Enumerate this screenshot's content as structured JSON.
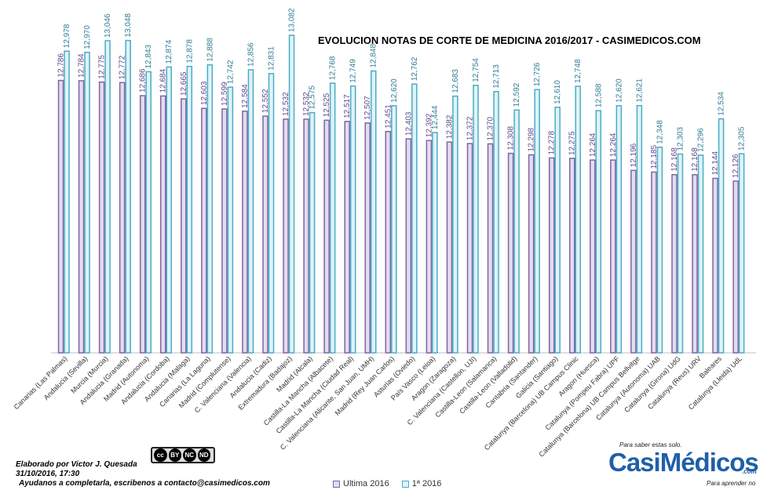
{
  "chart_data": {
    "type": "bar",
    "title": "EVOLUCION NOTAS DE CORTE DE MEDICINA 2016/2017    - CASIMEDICOS.COM",
    "xlabel": "",
    "ylabel": "",
    "ylim": [
      11.0,
      13.1
    ],
    "grid": false,
    "legend_position": "bottom",
    "categories": [
      "Canarias (Las Palmas)",
      "Andalucia (Sevilla)",
      "Murcia (Murcia)",
      "Andalucia (Granada)",
      "Madrid (Autonoma)",
      "Andalucia (Cordoba)",
      "Andalucia (Malaga)",
      "Canarias (La Laguna)",
      "Madrid (Complutense)",
      "C. Valenciana (Valencia)",
      "Andalucia (Cadiz)",
      "Extremadura (Badajoz)",
      "Madrid (Alcala)",
      "Castilla-La Mancha (Albacete)",
      "Castilla-La Mancha (Ciudad Real)",
      "C. Valenciana (Alicante, San Juan, UMH)",
      "Madrid (Rey Juan Carlos)",
      "Asturias (Oviedo)",
      "País Vasco (Leioa)",
      "Aragon (Zaragoza)",
      "C. Valenciana (Castellon, UJI)",
      "Castilla-Leon (Salamanca)",
      "Castilla-Leon (Valladolid)",
      "Cantabria (Santander)",
      "Galicia (Santiago)",
      "Catalunya (Barcelona) UB Campus Clinic",
      "Aragon (Huesca)",
      "Catalunya (Pompeu Fabra) UPF",
      "Catalunya (Barcelona) UB Campus Bellvitge",
      "Catalunya (Autonoma) UAB",
      "Catalunya (Girona) UdG",
      "Catalunya (Reus) URV",
      "Baleares",
      "Catalunya (Lleida) UdL"
    ],
    "series": [
      {
        "name": "Ultima 2016",
        "color": "#8064a2",
        "values": [
          12.786,
          12.784,
          12.775,
          12.772,
          12.686,
          12.684,
          12.665,
          12.603,
          12.599,
          12.584,
          12.552,
          12.532,
          12.532,
          12.525,
          12.517,
          12.507,
          12.451,
          12.403,
          12.392,
          12.382,
          12.372,
          12.37,
          12.308,
          12.298,
          12.278,
          12.275,
          12.264,
          12.264,
          12.196,
          12.185,
          12.168,
          12.168,
          12.144,
          12.126
        ],
        "labels": [
          "12,786",
          "12,784",
          "12,775",
          "12,772",
          "12,686",
          "12,684",
          "12,665",
          "12,603",
          "12,599",
          "12,584",
          "12,552",
          "12,532",
          "12,532",
          "12,525",
          "12,517",
          "12,507",
          "12,451",
          "12,403",
          "12,392",
          "12,382",
          "12,372",
          "12,370",
          "12,308",
          "12,298",
          "12,278",
          "12,275",
          "12,264",
          "12,264",
          "12,196",
          "12,185",
          "12,168",
          "12,168",
          "12,144",
          "12,126"
        ]
      },
      {
        "name": "1ª 2016",
        "color": "#4bacc6",
        "values": [
          12.978,
          12.97,
          13.046,
          13.048,
          12.843,
          12.874,
          12.878,
          12.888,
          12.742,
          12.856,
          12.831,
          13.082,
          12.575,
          12.768,
          12.749,
          12.848,
          12.62,
          12.762,
          12.444,
          12.683,
          12.754,
          12.713,
          12.592,
          12.726,
          12.61,
          12.748,
          12.588,
          12.62,
          12.621,
          12.348,
          12.303,
          12.296,
          12.534,
          12.305
        ],
        "labels": [
          "12,978",
          "12,970",
          "13,046",
          "13,048",
          "12,843",
          "12,874",
          "12,878",
          "12,888",
          "12,742",
          "12,856",
          "12,831",
          "13,082",
          "12,575",
          "12,768",
          "12,749",
          "12,848",
          "12,620",
          "12,762",
          "12,444",
          "12,683",
          "12,754",
          "12,713",
          "12,592",
          "12,726",
          "12,610",
          "12,748",
          "12,588",
          "12,620",
          "12,621",
          "12,348",
          "12,303",
          "12,296",
          "12,534",
          "12,305"
        ]
      }
    ]
  },
  "credits": {
    "line1": "Elaborado por Victor J. Quesada",
    "line2": "31/10/2016, 17:30",
    "line3": "Ayudanos a completarla, escribenos a contacto@casimedicos.com"
  },
  "license": {
    "cc": "cc",
    "parts": [
      "BY",
      "NC",
      "ND"
    ]
  },
  "logo": {
    "tagline_top": "Para saber estas solo.",
    "name": "CasiMédicos",
    "tagline_bottom": "Para aprender no",
    "domain": ".com",
    "brand_color": "#1f5fa8"
  }
}
